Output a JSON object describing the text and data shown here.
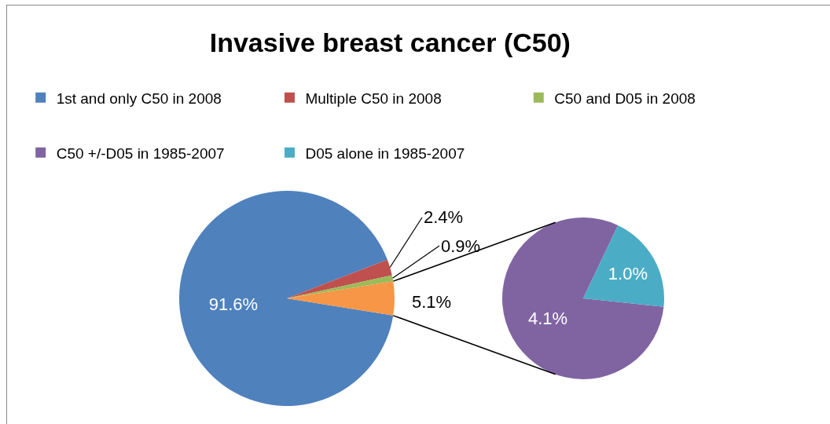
{
  "chart_data": [
    {
      "type": "pie",
      "title": "Invasive breast cancer (C50)",
      "categories": [
        "1st and only C50 in 2008",
        "Multiple C50 in 2008",
        "C50 and D05 in 2008",
        null
      ],
      "values": [
        91.6,
        2.4,
        0.9,
        5.1
      ],
      "colors": [
        "#4f81bd",
        "#c0504d",
        "#9bbb59",
        "#f79646"
      ],
      "value_labels": [
        "91.6%",
        "2.4%",
        "0.9%",
        "5.1%"
      ],
      "legend": "top"
    },
    {
      "type": "pie",
      "categories": [
        "C50 +/-D05 in 1985-2007",
        "D05 alone in 1985-2007"
      ],
      "values": [
        4.1,
        1.0
      ],
      "colors": [
        "#8064a2",
        "#4bacc6"
      ],
      "value_labels": [
        "4.1%",
        "1.0%"
      ],
      "legend": "top"
    }
  ]
}
